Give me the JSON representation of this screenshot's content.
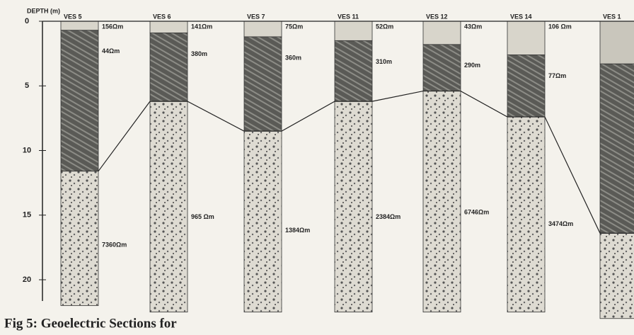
{
  "axis": {
    "title": "DEPTH (m)",
    "ticks": [
      0,
      5,
      10,
      15,
      20
    ]
  },
  "columns": [
    {
      "name": "VES 5",
      "layers": [
        {
          "label": "156Ωm",
          "bottom": 0.7
        },
        {
          "label": "44Ωm",
          "bottom": 11.6
        },
        {
          "label": "7360Ωm",
          "bottom": 22
        }
      ]
    },
    {
      "name": "VES 6",
      "layers": [
        {
          "label": "141Ωm",
          "bottom": 0.9
        },
        {
          "label": "380m",
          "bottom": 6.2
        },
        {
          "label": "965 Ωm",
          "bottom": 22.5
        }
      ]
    },
    {
      "name": "VES 7",
      "layers": [
        {
          "label": "75Ωm",
          "bottom": 1.2
        },
        {
          "label": "360m",
          "bottom": 8.5
        },
        {
          "label": "1384Ωm",
          "bottom": 22.5
        }
      ]
    },
    {
      "name": "VES 11",
      "layers": [
        {
          "label": "52Ωm",
          "bottom": 1.5
        },
        {
          "label": "310m",
          "bottom": 6.2
        },
        {
          "label": "2384Ωm",
          "bottom": 22.5
        }
      ]
    },
    {
      "name": "VES 12",
      "layers": [
        {
          "label": "43Ωm",
          "bottom": 1.8
        },
        {
          "label": "290m",
          "bottom": 5.4
        },
        {
          "label": "6746Ωm",
          "bottom": 22.5
        }
      ]
    },
    {
      "name": "VES 14",
      "layers": [
        {
          "label": "106 Ωm",
          "bottom": 2.6
        },
        {
          "label": "77Ωm",
          "bottom": 7.4
        },
        {
          "label": "3474Ωm",
          "bottom": 22.5
        }
      ]
    },
    {
      "name": "VES 1",
      "layers": [
        {
          "bottom": 3.3
        },
        {
          "bottom": 16.4
        },
        {
          "bottom": 23
        }
      ]
    }
  ],
  "caption": "Fig 5: Geoelectric Sections for"
}
